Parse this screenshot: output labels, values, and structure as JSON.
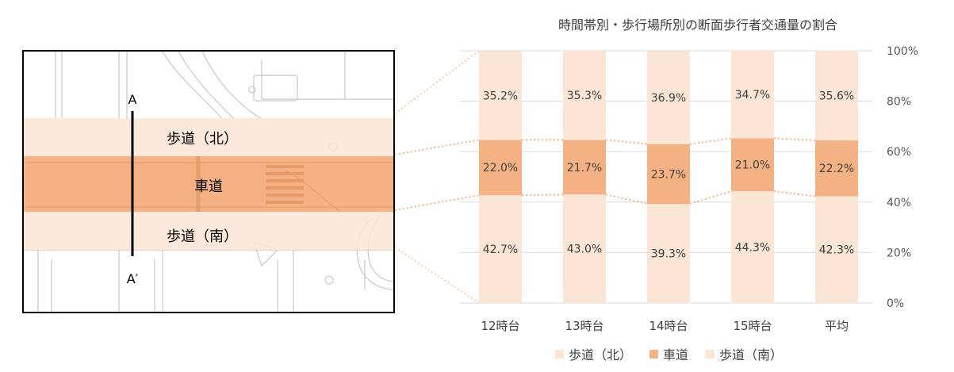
{
  "map": {
    "north_sidewalk_label": "歩道（北）",
    "roadway_label": "車道",
    "south_sidewalk_label": "歩道（南）",
    "section_start": "A",
    "section_end": "A′"
  },
  "chart_data": {
    "type": "bar",
    "title": "時間帯別・歩行場所別の断面歩行者交通量の割合",
    "stacked": true,
    "categories": [
      "12時台",
      "13時台",
      "14時台",
      "15時台",
      "平均"
    ],
    "series": [
      {
        "name": "歩道（南）",
        "values": [
          42.7,
          43.0,
          39.3,
          44.3,
          42.3
        ],
        "labels": [
          "42.7%",
          "43.0%",
          "39.3%",
          "44.3%",
          "42.3%"
        ],
        "color": "#fbe5d5"
      },
      {
        "name": "車道",
        "values": [
          22.0,
          21.7,
          23.7,
          21.0,
          22.2
        ],
        "labels": [
          "22.0%",
          "21.7%",
          "23.7%",
          "21.0%",
          "22.2%"
        ],
        "color": "#f4b183"
      },
      {
        "name": "歩道（北）",
        "values": [
          35.2,
          35.3,
          36.9,
          34.7,
          35.6
        ],
        "labels": [
          "35.2%",
          "35.3%",
          "36.9%",
          "34.7%",
          "35.6%"
        ],
        "color": "#fbe5d5"
      }
    ],
    "y_ticks": [
      "0%",
      "20%",
      "40%",
      "60%",
      "80%",
      "100%"
    ],
    "ylim": [
      0,
      100
    ],
    "legend": [
      "歩道（北）",
      "車道",
      "歩道（南）"
    ],
    "legend_position": "bottom",
    "grid": true,
    "connector_color": "#f4b183"
  }
}
